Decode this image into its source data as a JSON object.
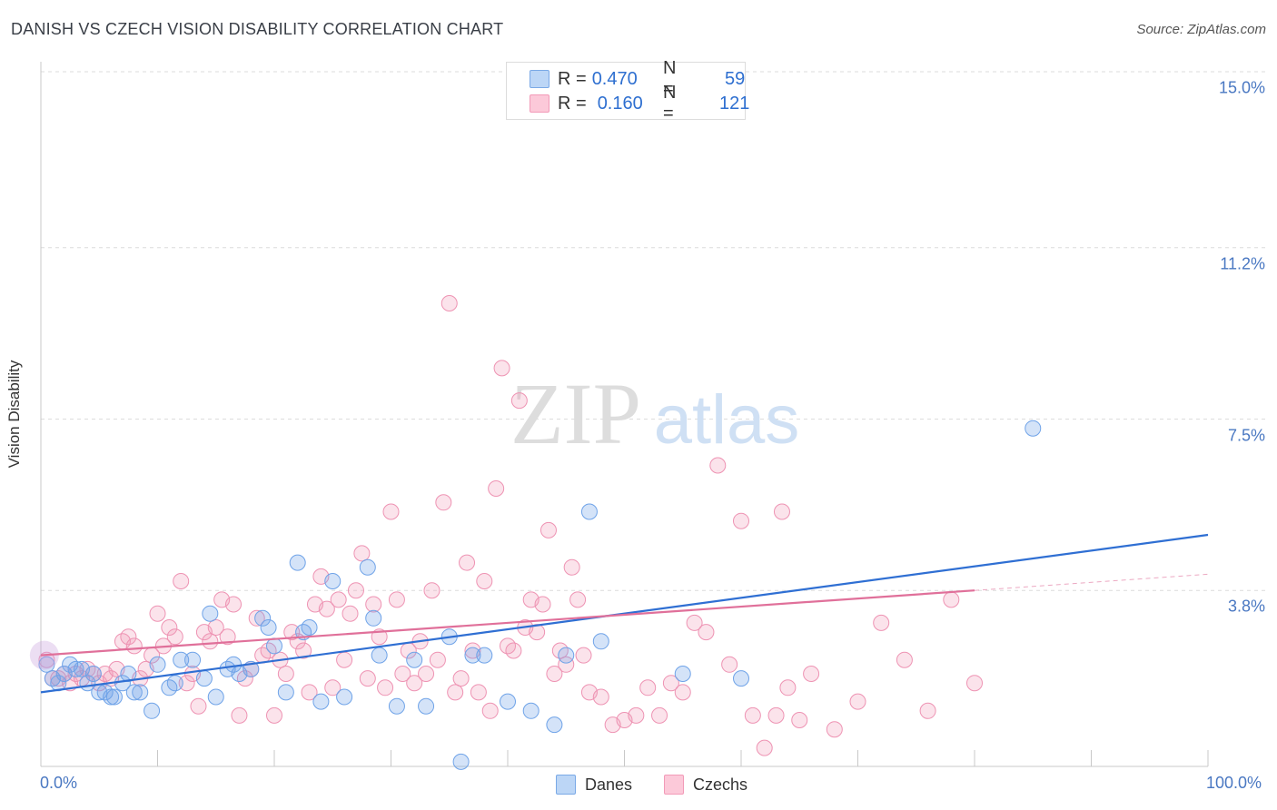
{
  "title": "DANISH VS CZECH VISION DISABILITY CORRELATION CHART",
  "source": "Source: ZipAtlas.com",
  "watermark": {
    "zip": "ZIP",
    "atlas": "atlas"
  },
  "legend": {
    "rows": [
      {
        "r_label": "R =",
        "r_value": "0.470",
        "n_label": "N =",
        "n_value": "59"
      },
      {
        "r_label": "R =",
        "r_value": "0.160",
        "n_label": "N =",
        "n_value": "121"
      }
    ]
  },
  "bottom_legend": {
    "danes": "Danes",
    "czechs": "Czechs"
  },
  "chart_data": {
    "type": "scatter",
    "title": "DANISH VS CZECH VISION DISABILITY CORRELATION CHART",
    "xlabel": "",
    "ylabel": "Vision Disability",
    "xlim": [
      0,
      100
    ],
    "ylim": [
      0,
      15.0
    ],
    "y_ticks": [
      "3.8%",
      "7.5%",
      "11.2%",
      "15.0%"
    ],
    "y_tick_values": [
      3.8,
      7.5,
      11.2,
      15.0
    ],
    "x_tick_labels": [
      "0.0%",
      "100.0%"
    ],
    "grid": "horizontal dashed",
    "legend_position": "top-center",
    "colors": {
      "danes": "#6fa3e8",
      "czechs": "#f29ab8",
      "danes_line": "#2f6fd3",
      "czechs_line": "#e0709a"
    },
    "series": [
      {
        "name": "Danes",
        "r": 0.47,
        "n": 59,
        "trend": {
          "x": [
            0,
            100
          ],
          "y": [
            1.6,
            5.0
          ]
        },
        "points": [
          [
            0.5,
            2.2
          ],
          [
            1.0,
            1.9
          ],
          [
            1.5,
            1.8
          ],
          [
            2.0,
            2.0
          ],
          [
            2.5,
            2.2
          ],
          [
            3.0,
            2.1
          ],
          [
            3.5,
            2.1
          ],
          [
            4.0,
            1.8
          ],
          [
            4.5,
            2.0
          ],
          [
            5.0,
            1.6
          ],
          [
            5.5,
            1.6
          ],
          [
            6.0,
            1.5
          ],
          [
            6.3,
            1.5
          ],
          [
            7.0,
            1.8
          ],
          [
            7.5,
            2.0
          ],
          [
            8.0,
            1.6
          ],
          [
            8.5,
            1.6
          ],
          [
            9.5,
            1.2
          ],
          [
            10.0,
            2.2
          ],
          [
            11.0,
            1.7
          ],
          [
            11.5,
            1.8
          ],
          [
            12.0,
            2.3
          ],
          [
            13.0,
            2.3
          ],
          [
            14.0,
            1.9
          ],
          [
            14.5,
            3.3
          ],
          [
            15.0,
            1.5
          ],
          [
            16.0,
            2.1
          ],
          [
            16.5,
            2.2
          ],
          [
            17.0,
            2.0
          ],
          [
            18.0,
            2.1
          ],
          [
            19.0,
            3.2
          ],
          [
            19.5,
            3.0
          ],
          [
            20.0,
            2.6
          ],
          [
            21.0,
            1.6
          ],
          [
            22.0,
            4.4
          ],
          [
            22.5,
            2.9
          ],
          [
            23.0,
            3.0
          ],
          [
            24.0,
            1.4
          ],
          [
            25.0,
            4.0
          ],
          [
            26.0,
            1.5
          ],
          [
            28.0,
            4.3
          ],
          [
            28.5,
            3.2
          ],
          [
            29.0,
            2.4
          ],
          [
            30.5,
            1.3
          ],
          [
            32.0,
            2.3
          ],
          [
            33.0,
            1.3
          ],
          [
            35.0,
            2.8
          ],
          [
            36.0,
            0.1
          ],
          [
            37.0,
            2.4
          ],
          [
            38.0,
            2.4
          ],
          [
            40.0,
            1.4
          ],
          [
            42.0,
            1.2
          ],
          [
            44.0,
            0.9
          ],
          [
            45.0,
            2.4
          ],
          [
            47.0,
            5.5
          ],
          [
            48.0,
            2.7
          ],
          [
            55.0,
            2.0
          ],
          [
            60.0,
            1.9
          ],
          [
            85.0,
            7.3
          ]
        ]
      },
      {
        "name": "Czechs",
        "r": 0.16,
        "n": 121,
        "trend": {
          "x": [
            0,
            80
          ],
          "y": [
            2.4,
            3.8
          ]
        },
        "points": [
          [
            0.5,
            2.3
          ],
          [
            1.0,
            1.9
          ],
          [
            1.5,
            1.9
          ],
          [
            2.0,
            2.0
          ],
          [
            2.5,
            1.8
          ],
          [
            3.0,
            2.0
          ],
          [
            3.5,
            1.9
          ],
          [
            4.0,
            2.1
          ],
          [
            4.5,
            2.0
          ],
          [
            5.0,
            1.8
          ],
          [
            5.5,
            2.0
          ],
          [
            6.0,
            1.9
          ],
          [
            6.5,
            2.1
          ],
          [
            7.0,
            2.7
          ],
          [
            7.5,
            2.8
          ],
          [
            8.0,
            2.6
          ],
          [
            8.5,
            1.9
          ],
          [
            9.0,
            2.1
          ],
          [
            9.5,
            2.4
          ],
          [
            10.0,
            3.3
          ],
          [
            10.5,
            2.6
          ],
          [
            11.0,
            3.0
          ],
          [
            11.5,
            2.8
          ],
          [
            12.0,
            4.0
          ],
          [
            12.5,
            1.8
          ],
          [
            13.0,
            2.0
          ],
          [
            13.5,
            1.3
          ],
          [
            14.0,
            2.9
          ],
          [
            14.5,
            2.7
          ],
          [
            15.0,
            3.0
          ],
          [
            15.5,
            3.6
          ],
          [
            16.0,
            2.8
          ],
          [
            16.5,
            3.5
          ],
          [
            17.0,
            1.1
          ],
          [
            17.5,
            1.9
          ],
          [
            18.0,
            2.1
          ],
          [
            18.5,
            3.2
          ],
          [
            19.0,
            2.4
          ],
          [
            19.5,
            2.5
          ],
          [
            20.0,
            1.1
          ],
          [
            20.5,
            2.3
          ],
          [
            21.0,
            2.0
          ],
          [
            21.5,
            2.9
          ],
          [
            22.0,
            2.7
          ],
          [
            22.5,
            2.5
          ],
          [
            23.0,
            1.6
          ],
          [
            23.5,
            3.5
          ],
          [
            24.0,
            4.1
          ],
          [
            24.5,
            3.4
          ],
          [
            25.0,
            1.7
          ],
          [
            25.5,
            3.6
          ],
          [
            26.0,
            2.3
          ],
          [
            26.5,
            3.3
          ],
          [
            27.0,
            3.8
          ],
          [
            27.5,
            4.6
          ],
          [
            28.0,
            1.9
          ],
          [
            28.5,
            3.5
          ],
          [
            29.0,
            2.8
          ],
          [
            29.5,
            1.7
          ],
          [
            30.0,
            5.5
          ],
          [
            30.5,
            3.6
          ],
          [
            31.0,
            2.0
          ],
          [
            31.5,
            2.5
          ],
          [
            32.0,
            1.8
          ],
          [
            32.5,
            2.7
          ],
          [
            33.0,
            2.0
          ],
          [
            33.5,
            3.8
          ],
          [
            34.0,
            2.3
          ],
          [
            34.5,
            5.7
          ],
          [
            35.0,
            10.0
          ],
          [
            35.5,
            1.6
          ],
          [
            36.0,
            1.9
          ],
          [
            36.5,
            4.4
          ],
          [
            37.0,
            2.5
          ],
          [
            37.5,
            1.6
          ],
          [
            38.0,
            4.0
          ],
          [
            38.5,
            1.2
          ],
          [
            39.0,
            6.0
          ],
          [
            39.5,
            8.6
          ],
          [
            40.0,
            2.6
          ],
          [
            40.5,
            2.5
          ],
          [
            41.0,
            7.9
          ],
          [
            41.5,
            3.0
          ],
          [
            42.0,
            3.6
          ],
          [
            42.5,
            2.9
          ],
          [
            43.0,
            3.5
          ],
          [
            43.5,
            5.1
          ],
          [
            44.0,
            2.0
          ],
          [
            44.5,
            2.5
          ],
          [
            45.0,
            2.2
          ],
          [
            45.5,
            4.3
          ],
          [
            46.0,
            3.6
          ],
          [
            46.5,
            2.4
          ],
          [
            47.0,
            1.6
          ],
          [
            48.0,
            1.5
          ],
          [
            49.0,
            0.9
          ],
          [
            50.0,
            1.0
          ],
          [
            51.0,
            1.1
          ],
          [
            52.0,
            1.7
          ],
          [
            53.0,
            1.1
          ],
          [
            54.0,
            1.8
          ],
          [
            55.0,
            1.6
          ],
          [
            56.0,
            3.1
          ],
          [
            57.0,
            2.9
          ],
          [
            58.0,
            6.5
          ],
          [
            59.0,
            2.2
          ],
          [
            60.0,
            5.3
          ],
          [
            61.0,
            1.1
          ],
          [
            62.0,
            0.4
          ],
          [
            63.0,
            1.1
          ],
          [
            63.5,
            5.5
          ],
          [
            64.0,
            1.7
          ],
          [
            65.0,
            1.0
          ],
          [
            66.0,
            2.0
          ],
          [
            68.0,
            0.8
          ],
          [
            70.0,
            1.4
          ],
          [
            72.0,
            3.1
          ],
          [
            74.0,
            2.3
          ],
          [
            76.0,
            1.2
          ],
          [
            78.0,
            3.6
          ],
          [
            80.0,
            1.8
          ]
        ]
      }
    ]
  }
}
